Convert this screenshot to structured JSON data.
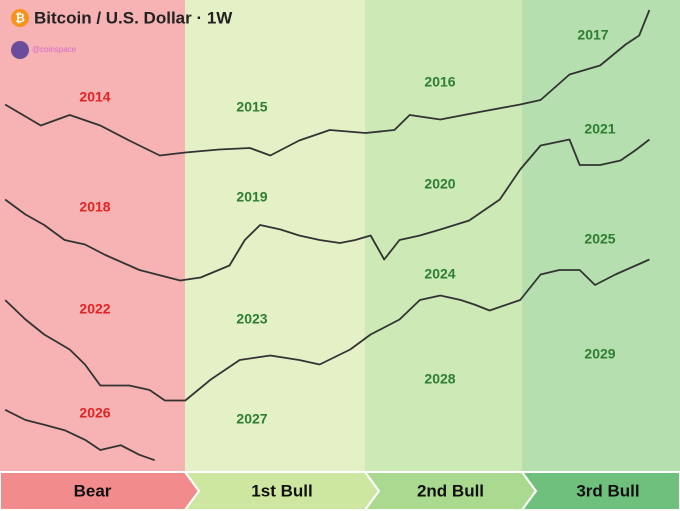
{
  "chart_data": {
    "type": "line",
    "title": "Bitcoin / U.S. Dollar · 1W",
    "author": "@coinspace",
    "phases": [
      {
        "name": "Bear",
        "color": "#f7b3b3",
        "arrow_color": "#f28b8b",
        "label_color": "#e02424"
      },
      {
        "name": "1st Bull",
        "color": "#e4f1c6",
        "arrow_color": "#cde6a0",
        "label_color": "#2e7d32"
      },
      {
        "name": "2nd Bull",
        "color": "#cce9b6",
        "arrow_color": "#a9da90",
        "label_color": "#2e7d32"
      },
      {
        "name": "3rd Bull",
        "color": "#b5dfae",
        "arrow_color": "#6fc07c",
        "label_color": "#2e7d32"
      }
    ],
    "xlim": [
      0,
      4
    ],
    "ylim": [
      0,
      100
    ],
    "line_color": "#333333",
    "series": [
      {
        "name": "2014-2017",
        "years": [
          "2014",
          "2015",
          "2016",
          "2017"
        ],
        "x": [
          0.03,
          0.24,
          0.41,
          0.59,
          0.76,
          0.94,
          1.09,
          1.29,
          1.47,
          1.59,
          1.76,
          1.94,
          2.15,
          2.32,
          2.41,
          2.59,
          2.82,
          3.06,
          3.18,
          3.35,
          3.53,
          3.68,
          3.76,
          3.82
        ],
        "values": [
          37,
          23,
          30,
          23,
          13,
          3,
          5,
          7,
          8,
          3,
          13,
          20,
          18,
          20,
          30,
          27,
          32,
          37,
          40,
          57,
          63,
          77,
          83,
          100
        ]
      },
      {
        "name": "2018-2021",
        "years": [
          "2018",
          "2019",
          "2020",
          "2021"
        ],
        "x": [
          0.03,
          0.15,
          0.26,
          0.38,
          0.5,
          0.62,
          0.82,
          1.06,
          1.18,
          1.35,
          1.44,
          1.53,
          1.65,
          1.76,
          1.88,
          2,
          2.09,
          2.18,
          2.26,
          2.35,
          2.47,
          2.59,
          2.76,
          2.94,
          3.06,
          3.18,
          3.35,
          3.41,
          3.53,
          3.65,
          3.74,
          3.82
        ],
        "values": [
          57,
          47,
          40,
          30,
          27,
          20,
          10,
          3,
          5,
          13,
          30,
          40,
          37,
          33,
          30,
          28,
          30,
          33,
          17,
          30,
          33,
          37,
          43,
          57,
          77,
          93,
          97,
          80,
          80,
          83,
          90,
          97
        ]
      },
      {
        "name": "2022-2025",
        "years": [
          "2022",
          "2023",
          "2024",
          "2025"
        ],
        "x": [
          0.03,
          0.15,
          0.26,
          0.41,
          0.5,
          0.59,
          0.76,
          0.88,
          0.97,
          1.09,
          1.24,
          1.41,
          1.59,
          1.76,
          1.88,
          2.06,
          2.18,
          2.35,
          2.47,
          2.59,
          2.71,
          2.79,
          2.88,
          3.06,
          3.18,
          3.29,
          3.41,
          3.5,
          3.62,
          3.74,
          3.82
        ],
        "values": [
          70,
          57,
          47,
          37,
          27,
          13,
          13,
          10,
          3,
          3,
          17,
          30,
          33,
          30,
          27,
          37,
          47,
          57,
          70,
          73,
          70,
          67,
          63,
          70,
          87,
          90,
          90,
          80,
          87,
          93,
          97
        ]
      },
      {
        "name": "2026-2029",
        "years": [
          "2026",
          "2027",
          "2028",
          "2029"
        ],
        "x": [
          0.03,
          0.15,
          0.26,
          0.38,
          0.5,
          0.59,
          0.71,
          0.82,
          0.91
        ],
        "values": [
          92,
          75,
          67,
          58,
          42,
          25,
          33,
          17,
          8
        ]
      }
    ]
  }
}
